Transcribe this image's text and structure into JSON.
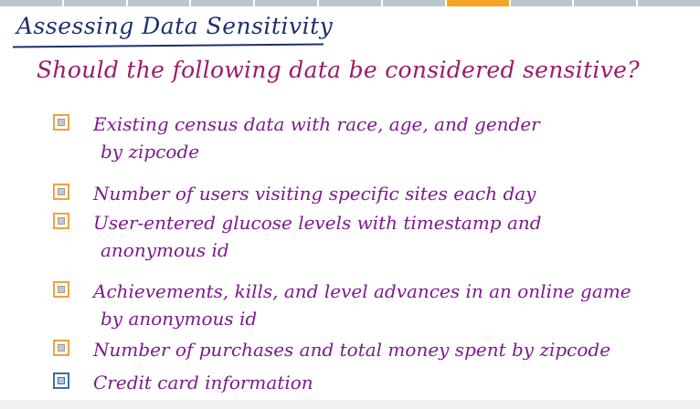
{
  "progress": {
    "segments": 11,
    "active_index": 7
  },
  "colors": {
    "title": "#1c2f6e",
    "question": "#9c1a6a",
    "option_text": "#7d1a8d",
    "checkbox_border": "#f0a23a",
    "progress_active": "#f5a623",
    "progress_inactive": "#b9c6cc"
  },
  "title": "Assessing Data Sensitivity",
  "question": "Should the following data be considered sensitive?",
  "options": [
    {
      "line1": "Existing census data with race, age, and gender",
      "line2": "by zipcode",
      "checked": false
    },
    {
      "line1": "Number of users visiting specific sites each day",
      "line2": "",
      "checked": false
    },
    {
      "line1": "User-entered glucose levels with timestamp and",
      "line2": "anonymous id",
      "checked": false
    },
    {
      "line1": "Achievements, kills, and level advances in an online game",
      "line2": "by anonymous id",
      "checked": false
    },
    {
      "line1": "Number of purchases and total money spent by zipcode",
      "line2": "",
      "checked": false
    },
    {
      "line1": "Credit card information",
      "line2": "",
      "checked": false
    }
  ]
}
